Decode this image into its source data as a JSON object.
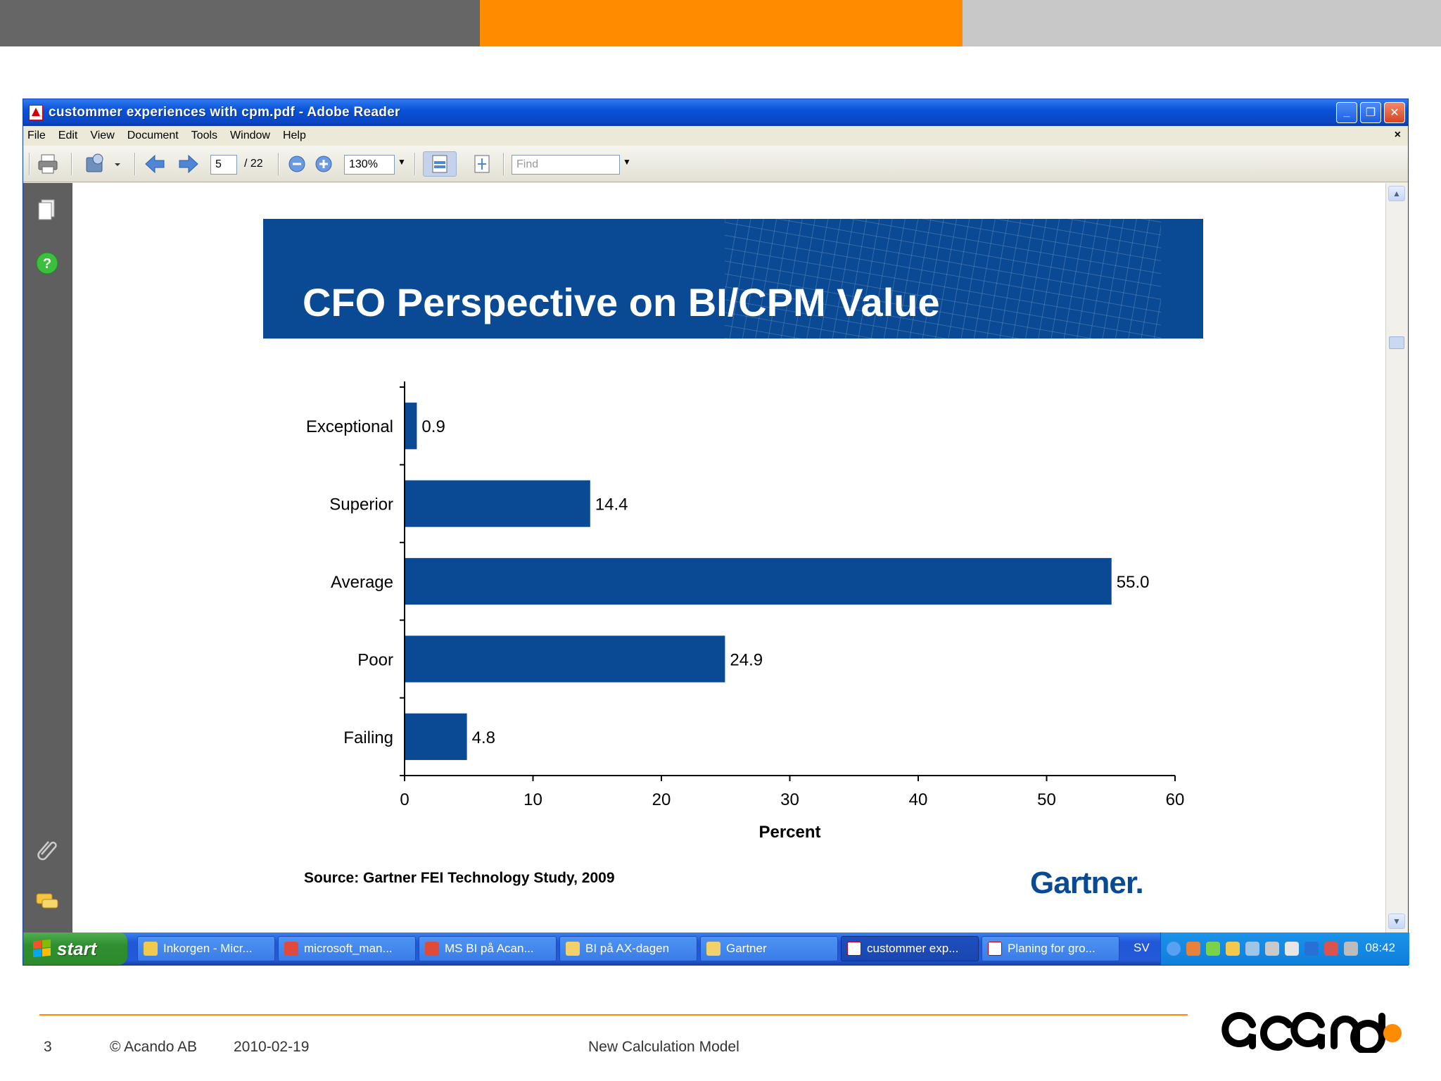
{
  "slide": {
    "accent_colors": [
      "#666666",
      "#ff8c00",
      "#c8c8c8"
    ],
    "footer": {
      "page_number": "3",
      "copyright": "© Acando AB",
      "date": "2010-02-19",
      "title": "New Calculation Model"
    },
    "logo": "acando"
  },
  "window": {
    "title": "custommer experiences with cpm.pdf - Adobe Reader",
    "menu": [
      "File",
      "Edit",
      "View",
      "Document",
      "Tools",
      "Window",
      "Help"
    ],
    "menu_close": "×",
    "toolbar": {
      "page_current": "5",
      "page_total": "/ 22",
      "zoom": "130%",
      "find_placeholder": "Find"
    }
  },
  "document": {
    "banner_title": "CFO Perspective on BI/CPM Value",
    "source": "Source: Gartner FEI Technology Study, 2009",
    "brand": "Gartner."
  },
  "chart_data": {
    "type": "bar",
    "orientation": "horizontal",
    "categories": [
      "Exceptional",
      "Superior",
      "Average",
      "Poor",
      "Failing"
    ],
    "values": [
      0.9,
      14.4,
      55.0,
      24.9,
      4.8
    ],
    "value_labels": [
      "0.9",
      "14.4",
      "55.0",
      "24.9",
      "4.8"
    ],
    "xlabel": "Percent",
    "ylabel": "",
    "xlim": [
      0,
      60
    ],
    "xticks": [
      "0",
      "10",
      "20",
      "30",
      "40",
      "50",
      "60"
    ],
    "bar_color": "#0a4a94"
  },
  "taskbar": {
    "start_label": "start",
    "tasks": [
      {
        "label": "Inkorgen - Micr...",
        "active": false
      },
      {
        "label": "microsoft_man...",
        "active": false
      },
      {
        "label": "MS BI på Acan...",
        "active": false
      },
      {
        "label": "BI på AX-dagen",
        "active": false
      },
      {
        "label": "Gartner",
        "active": false
      },
      {
        "label": "custommer exp...",
        "active": true
      },
      {
        "label": "Planing for gro...",
        "active": false
      }
    ],
    "language": "SV",
    "clock": "08:42"
  }
}
